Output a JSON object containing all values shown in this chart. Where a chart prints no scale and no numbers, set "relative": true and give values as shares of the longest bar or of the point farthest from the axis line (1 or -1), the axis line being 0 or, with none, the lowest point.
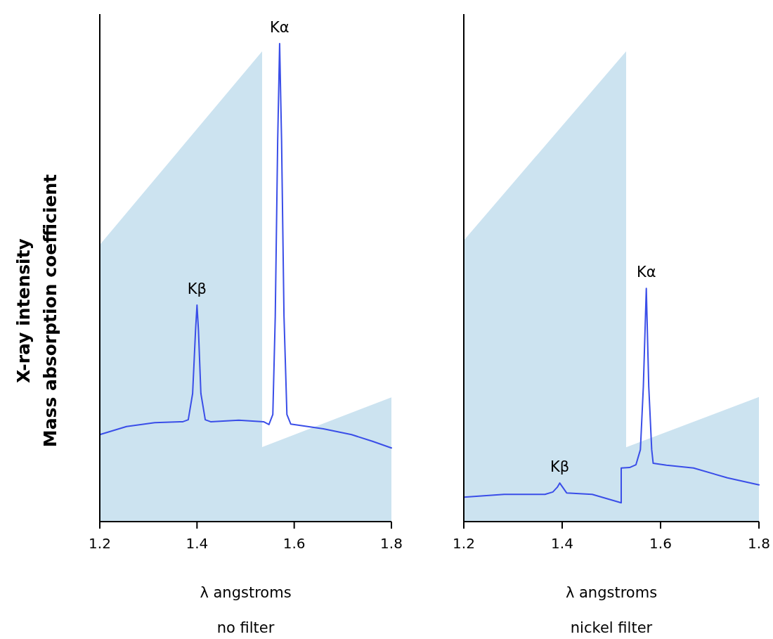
{
  "chart_data": [
    {
      "type": "line",
      "relative": true,
      "xlabel": "λ angstroms",
      "ylabel": "X-ray intensity\nMass absorption coefficient",
      "xlim": [
        1.2,
        1.8
      ],
      "xticks": [
        1.2,
        1.4,
        1.6,
        1.8
      ],
      "series": [
        {
          "type": "area",
          "color": "#cce3f0",
          "x": [
            1.2,
            1.534,
            1.534,
            1.8
          ],
          "values": [
            0.579,
            0.984,
            0.156,
            0.26
          ]
        },
        {
          "color": "#3a4ee8",
          "x": [
            1.2,
            1.255,
            1.313,
            1.371,
            1.382,
            1.391,
            1.397,
            1.4,
            1.403,
            1.408,
            1.417,
            1.428,
            1.486,
            1.537,
            1.548,
            1.556,
            1.561,
            1.566,
            1.57,
            1.574,
            1.579,
            1.585,
            1.593,
            1.66,
            1.718,
            1.761,
            1.8
          ],
          "values": [
            0.182,
            0.199,
            0.207,
            0.209,
            0.213,
            0.268,
            0.4,
            0.453,
            0.4,
            0.268,
            0.213,
            0.209,
            0.212,
            0.209,
            0.203,
            0.224,
            0.429,
            0.797,
            1.0,
            0.797,
            0.429,
            0.224,
            0.204,
            0.194,
            0.182,
            0.168,
            0.154
          ]
        }
      ],
      "annotations": [
        {
          "text": "Kα",
          "x": 1.57,
          "y": 1.0
        },
        {
          "text": "Kβ",
          "x": 1.4,
          "y": 0.453
        },
        "no filter"
      ]
    },
    {
      "type": "line",
      "relative": true,
      "xlabel": "λ angstroms",
      "xlim": [
        1.2,
        1.8
      ],
      "xticks": [
        1.2,
        1.4,
        1.6,
        1.8
      ],
      "series": [
        {
          "type": "area",
          "color": "#cce3f0",
          "x": [
            1.2,
            1.53,
            1.53,
            1.8
          ],
          "values": [
            0.598,
            1.0,
            0.158,
            0.265
          ]
        },
        {
          "color": "#3a4ee8",
          "x": [
            1.2,
            1.282,
            1.365,
            1.381,
            1.39,
            1.395,
            1.401,
            1.409,
            1.461,
            1.52,
            1.52,
            1.537,
            1.55,
            1.559,
            1.565,
            1.571,
            1.576,
            1.582,
            1.585,
            1.612,
            1.667,
            1.736,
            1.8
          ],
          "values": [
            0.052,
            0.058,
            0.058,
            0.063,
            0.073,
            0.082,
            0.073,
            0.061,
            0.058,
            0.04,
            0.114,
            0.115,
            0.121,
            0.153,
            0.287,
            0.496,
            0.287,
            0.153,
            0.124,
            0.12,
            0.114,
            0.093,
            0.078
          ]
        }
      ],
      "annotations": [
        {
          "text": "Kβ",
          "x": 1.395,
          "y": 0.082
        },
        {
          "text": "Kα",
          "x": 1.571,
          "y": 0.496
        },
        "nickel filter"
      ]
    }
  ]
}
